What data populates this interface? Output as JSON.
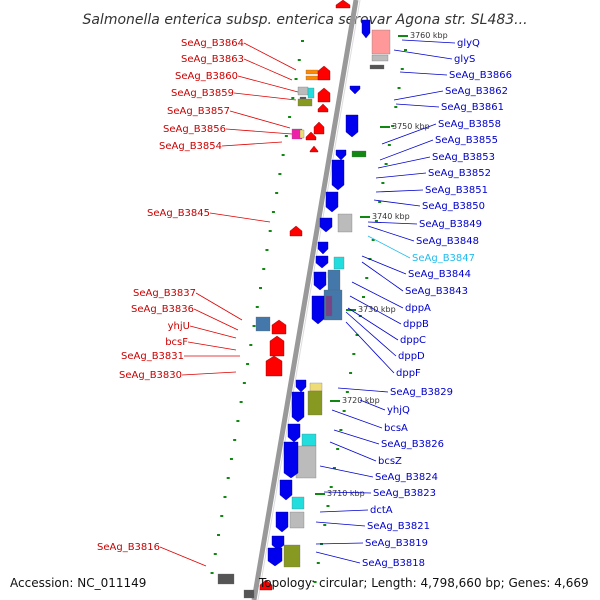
{
  "title": "Salmonella enterica subsp. enterica serovar Agona str. SL483...",
  "footer": {
    "accession": "Accession: NC_011149",
    "summary": "Topology: circular; Length: 4,798,660 bp; Genes: 4,669"
  },
  "colors": {
    "reverse_label": "#cc0000",
    "forward_label": "#0000cc",
    "highlight_label": "#22bbee",
    "reverse_gene": "#ff0000",
    "forward_gene": "#0000ee"
  },
  "kbp_marks": [
    "3760 kbp",
    "3750 kbp",
    "3740 kbp",
    "3730 kbp",
    "3720 kbp",
    "3710 kbp"
  ],
  "left_labels": [
    "SeAg_B3864",
    "SeAg_B3863",
    "SeAg_B3860",
    "SeAg_B3859",
    "SeAg_B3857",
    "SeAg_B3856",
    "SeAg_B3854",
    "SeAg_B3845",
    "SeAg_B3837",
    "SeAg_B3836",
    "yhjU",
    "bcsF",
    "SeAg_B3831",
    "SeAg_B3830",
    "SeAg_B3816"
  ],
  "right_labels": [
    "glyQ",
    "glyS",
    "SeAg_B3866",
    "SeAg_B3862",
    "SeAg_B3861",
    "SeAg_B3858",
    "SeAg_B3855",
    "SeAg_B3853",
    "SeAg_B3852",
    "SeAg_B3851",
    "SeAg_B3850",
    "SeAg_B3849",
    "SeAg_B3848",
    "SeAg_B3847",
    "SeAg_B3844",
    "SeAg_B3843",
    "dppA",
    "dppB",
    "dppC",
    "dppD",
    "dppF",
    "SeAg_B3829",
    "yhjQ",
    "bcsA",
    "SeAg_B3826",
    "bcsZ",
    "SeAg_B3824",
    "SeAg_B3823",
    "dctA",
    "SeAg_B3821",
    "SeAg_B3819",
    "SeAg_B3818"
  ]
}
